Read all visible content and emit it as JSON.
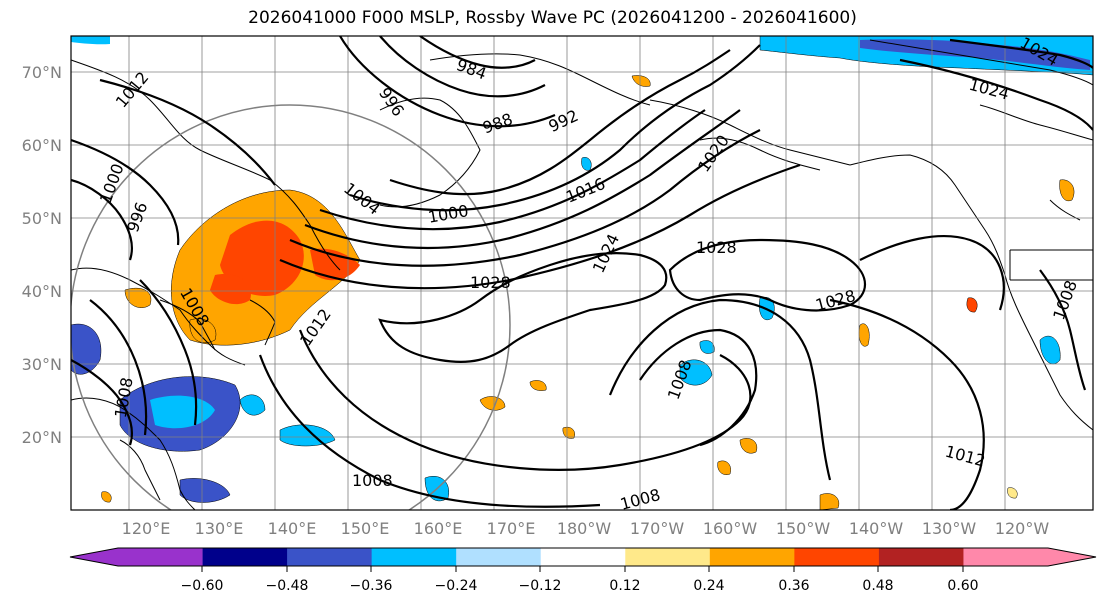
{
  "title": "2026041000 F000 MSLP, Rossby Wave PC (2026041200 - 2026041600)",
  "map": {
    "lat_labels": [
      "70°N",
      "60°N",
      "50°N",
      "40°N",
      "30°N",
      "20°N"
    ],
    "lon_labels": [
      "120°E",
      "130°E",
      "140°E",
      "150°E",
      "160°E",
      "170°E",
      "180°W",
      "170°W",
      "160°W",
      "150°W",
      "140°W",
      "130°W",
      "120°W"
    ],
    "isobar_labels": [
      "984",
      "988",
      "992",
      "996",
      "1000",
      "1004",
      "1012",
      "1016",
      "1020",
      "1024",
      "1028",
      "1028",
      "1028",
      "1008",
      "1008",
      "1008",
      "1012",
      "1000",
      "996",
      "1008",
      "1008",
      "1012",
      "1024",
      "1024",
      "1008"
    ]
  },
  "colorbar": {
    "tick_labels": [
      "−0.60",
      "−0.48",
      "−0.36",
      "−0.24",
      "−0.12",
      "0.12",
      "0.24",
      "0.36",
      "0.48",
      "0.60"
    ],
    "colors": [
      "#9932cc",
      "#00008b",
      "#3a53c8",
      "#00bfff",
      "#b0e0ff",
      "#ffffff",
      "#ffe98a",
      "#ffa500",
      "#ff4500",
      "#b22222",
      "#ff88aa"
    ]
  }
}
